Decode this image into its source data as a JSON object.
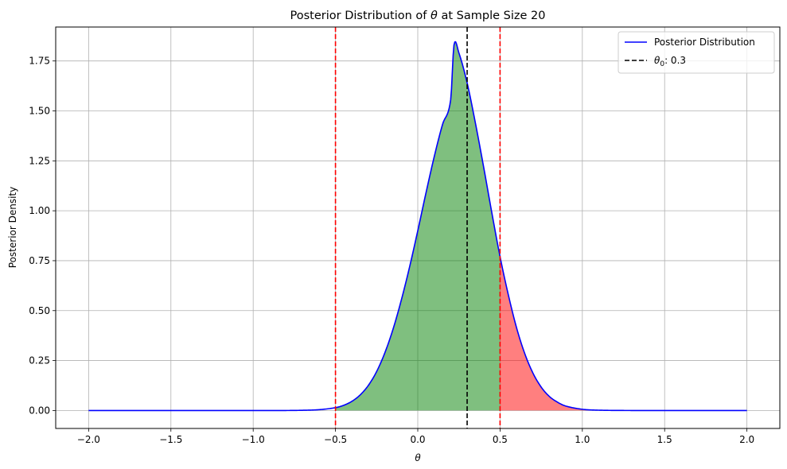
{
  "chart_data": {
    "type": "area",
    "title_prefix": "Posterior Distribution of ",
    "title_symbol": "θ",
    "title_suffix": " at Sample Size 20",
    "xlabel": "θ",
    "ylabel": "Posterior Density",
    "xlim": [
      -2.2,
      2.2
    ],
    "ylim": [
      -0.09,
      1.92
    ],
    "xticks": [
      -2.0,
      -1.5,
      -1.0,
      -0.5,
      0.0,
      0.5,
      1.0,
      1.5,
      2.0
    ],
    "xtick_labels": [
      "−2.0",
      "−1.5",
      "−1.0",
      "−0.5",
      "0.0",
      "0.5",
      "1.0",
      "1.5",
      "2.0"
    ],
    "yticks": [
      0.0,
      0.25,
      0.5,
      0.75,
      1.0,
      1.25,
      1.5,
      1.75
    ],
    "ytick_labels": [
      "0.00",
      "0.25",
      "0.50",
      "0.75",
      "1.00",
      "1.25",
      "1.50",
      "1.75"
    ],
    "grid": true,
    "legend_position": "top-right",
    "series": [
      {
        "name": "Posterior Distribution",
        "color": "#0000ff",
        "x": [
          -2.0,
          -1.0,
          -0.8,
          -0.7,
          -0.6,
          -0.5,
          -0.45,
          -0.4,
          -0.35,
          -0.3,
          -0.25,
          -0.2,
          -0.15,
          -0.1,
          -0.05,
          0.0,
          0.05,
          0.1,
          0.15,
          0.2,
          0.22,
          0.25,
          0.3,
          0.35,
          0.4,
          0.45,
          0.5,
          0.55,
          0.6,
          0.65,
          0.7,
          0.75,
          0.8,
          0.85,
          0.9,
          1.0,
          1.1,
          1.3,
          2.0
        ],
        "y": [
          0.0,
          0.0,
          0.0,
          0.001,
          0.004,
          0.014,
          0.026,
          0.046,
          0.078,
          0.126,
          0.195,
          0.289,
          0.408,
          0.553,
          0.718,
          0.9,
          1.09,
          1.271,
          1.431,
          1.556,
          1.83,
          1.79,
          1.64,
          1.44,
          1.22,
          0.99,
          0.77,
          0.58,
          0.415,
          0.285,
          0.187,
          0.117,
          0.07,
          0.041,
          0.022,
          0.006,
          0.0015,
          0.0,
          0.0
        ]
      }
    ],
    "reference_lines": [
      {
        "name": "θ0",
        "value": 0.3,
        "color": "#000000",
        "style": "dashed"
      },
      {
        "value": -0.5,
        "color": "#ff0000",
        "style": "dashed"
      },
      {
        "value": 0.5,
        "color": "#ff0000",
        "style": "dashed"
      }
    ],
    "shaded_regions": [
      {
        "from": -0.5,
        "to": 0.5,
        "color": "#008000",
        "opacity": 0.5
      },
      {
        "from": 0.5,
        "to": 1.1,
        "color": "#ff0000",
        "opacity": 0.5
      }
    ],
    "legend": [
      {
        "label": "Posterior Distribution",
        "color": "#0000ff",
        "style": "solid"
      },
      {
        "label_symbol": "θ",
        "label_sub": "0",
        "label_rest": ": 0.3",
        "color": "#000000",
        "style": "dashed"
      }
    ]
  }
}
